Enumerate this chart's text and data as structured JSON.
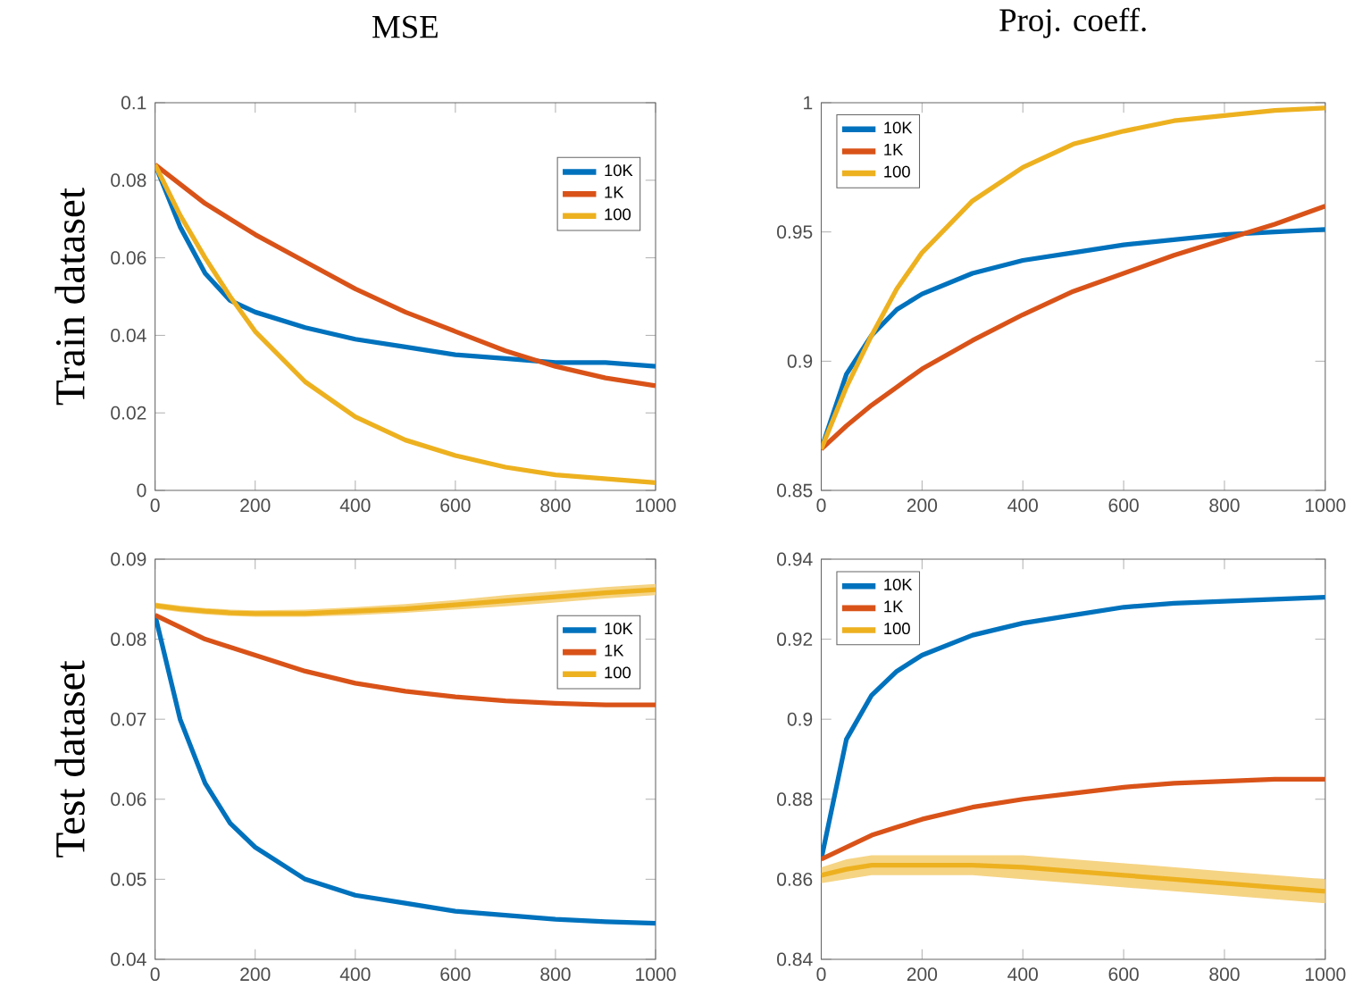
{
  "chart_data": [
    {
      "type": "line",
      "title": "MSE",
      "ylabel": "Train dataset",
      "x": [
        0,
        50,
        100,
        150,
        200,
        300,
        400,
        500,
        600,
        700,
        800,
        900,
        1000
      ],
      "xlim": [
        0,
        1000
      ],
      "xticks": [
        0,
        200,
        400,
        600,
        800,
        1000
      ],
      "ylim": [
        0,
        0.1
      ],
      "yticks": [
        0,
        0.02,
        0.04,
        0.06,
        0.08,
        0.1
      ],
      "legend": "top right",
      "series": [
        {
          "name": "10K",
          "color": "#0072bd",
          "values": [
            0.084,
            0.068,
            0.056,
            0.049,
            0.046,
            0.042,
            0.039,
            0.037,
            0.035,
            0.034,
            0.033,
            0.033,
            0.032
          ]
        },
        {
          "name": "1K",
          "color": "#d95319",
          "values": [
            0.084,
            0.079,
            0.074,
            0.07,
            0.066,
            0.059,
            0.052,
            0.046,
            0.041,
            0.036,
            0.032,
            0.029,
            0.027
          ]
        },
        {
          "name": "100",
          "color": "#edb120",
          "values": [
            0.084,
            0.071,
            0.06,
            0.05,
            0.041,
            0.028,
            0.019,
            0.013,
            0.009,
            0.006,
            0.004,
            0.003,
            0.002
          ]
        }
      ]
    },
    {
      "type": "line",
      "title": "Proj. coeff.",
      "x": [
        0,
        50,
        100,
        150,
        200,
        300,
        400,
        500,
        600,
        700,
        800,
        900,
        1000
      ],
      "xlim": [
        0,
        1000
      ],
      "xticks": [
        0,
        200,
        400,
        600,
        800,
        1000
      ],
      "ylim": [
        0.85,
        1
      ],
      "yticks": [
        0.85,
        0.9,
        0.95,
        1
      ],
      "legend": "top left",
      "series": [
        {
          "name": "10K",
          "color": "#0072bd",
          "values": [
            0.866,
            0.895,
            0.91,
            0.92,
            0.926,
            0.934,
            0.939,
            0.942,
            0.945,
            0.947,
            0.949,
            0.95,
            0.951
          ]
        },
        {
          "name": "1K",
          "color": "#d95319",
          "values": [
            0.866,
            0.875,
            0.883,
            0.89,
            0.897,
            0.908,
            0.918,
            0.927,
            0.934,
            0.941,
            0.947,
            0.953,
            0.96
          ]
        },
        {
          "name": "100",
          "color": "#edb120",
          "values": [
            0.866,
            0.89,
            0.91,
            0.928,
            0.942,
            0.962,
            0.975,
            0.984,
            0.989,
            0.993,
            0.995,
            0.997,
            0.998
          ]
        }
      ]
    },
    {
      "type": "line",
      "ylabel": "Test dataset",
      "x": [
        0,
        50,
        100,
        150,
        200,
        300,
        400,
        500,
        600,
        700,
        800,
        900,
        1000
      ],
      "xlim": [
        0,
        1000
      ],
      "xticks": [
        0,
        200,
        400,
        600,
        800,
        1000
      ],
      "ylim": [
        0.04,
        0.09
      ],
      "yticks": [
        0.04,
        0.05,
        0.06,
        0.07,
        0.08,
        0.09
      ],
      "legend": "top right",
      "series": [
        {
          "name": "10K",
          "color": "#0072bd",
          "values": [
            0.083,
            0.07,
            0.062,
            0.057,
            0.054,
            0.05,
            0.048,
            0.047,
            0.046,
            0.0455,
            0.045,
            0.0447,
            0.0445
          ]
        },
        {
          "name": "1K",
          "color": "#d95319",
          "values": [
            0.083,
            0.0815,
            0.08,
            0.079,
            0.078,
            0.076,
            0.0745,
            0.0735,
            0.0728,
            0.0723,
            0.072,
            0.0718,
            0.0718
          ]
        },
        {
          "name": "100",
          "color": "#edb120",
          "values": [
            0.0842,
            0.0838,
            0.0835,
            0.0833,
            0.0832,
            0.0832,
            0.0835,
            0.0838,
            0.0843,
            0.0848,
            0.0853,
            0.0858,
            0.0862
          ],
          "lower": [
            0.0838,
            0.0834,
            0.0831,
            0.0829,
            0.0828,
            0.0828,
            0.083,
            0.0833,
            0.0837,
            0.0841,
            0.0846,
            0.0851,
            0.0855
          ],
          "upper": [
            0.0846,
            0.0842,
            0.0839,
            0.0837,
            0.0836,
            0.0837,
            0.084,
            0.0844,
            0.0849,
            0.0855,
            0.086,
            0.0865,
            0.0869
          ]
        }
      ]
    },
    {
      "type": "line",
      "x": [
        0,
        50,
        100,
        150,
        200,
        300,
        400,
        500,
        600,
        700,
        800,
        900,
        1000
      ],
      "xlim": [
        0,
        1000
      ],
      "xticks": [
        0,
        200,
        400,
        600,
        800,
        1000
      ],
      "ylim": [
        0.84,
        0.94
      ],
      "yticks": [
        0.84,
        0.86,
        0.88,
        0.9,
        0.92,
        0.94
      ],
      "legend": "top left",
      "series": [
        {
          "name": "10K",
          "color": "#0072bd",
          "values": [
            0.865,
            0.895,
            0.906,
            0.912,
            0.916,
            0.921,
            0.924,
            0.926,
            0.928,
            0.929,
            0.9295,
            0.93,
            0.9305
          ]
        },
        {
          "name": "1K",
          "color": "#d95319",
          "values": [
            0.865,
            0.868,
            0.871,
            0.873,
            0.875,
            0.878,
            0.88,
            0.8815,
            0.883,
            0.884,
            0.8845,
            0.885,
            0.885
          ]
        },
        {
          "name": "100",
          "color": "#edb120",
          "values": [
            0.861,
            0.8625,
            0.8635,
            0.8635,
            0.8635,
            0.8635,
            0.863,
            0.862,
            0.861,
            0.86,
            0.859,
            0.858,
            0.857
          ],
          "lower": [
            0.859,
            0.86,
            0.861,
            0.861,
            0.861,
            0.861,
            0.86,
            0.859,
            0.858,
            0.857,
            0.856,
            0.855,
            0.854
          ],
          "upper": [
            0.863,
            0.865,
            0.866,
            0.866,
            0.866,
            0.866,
            0.866,
            0.865,
            0.864,
            0.863,
            0.862,
            0.861,
            0.86
          ]
        }
      ]
    }
  ]
}
